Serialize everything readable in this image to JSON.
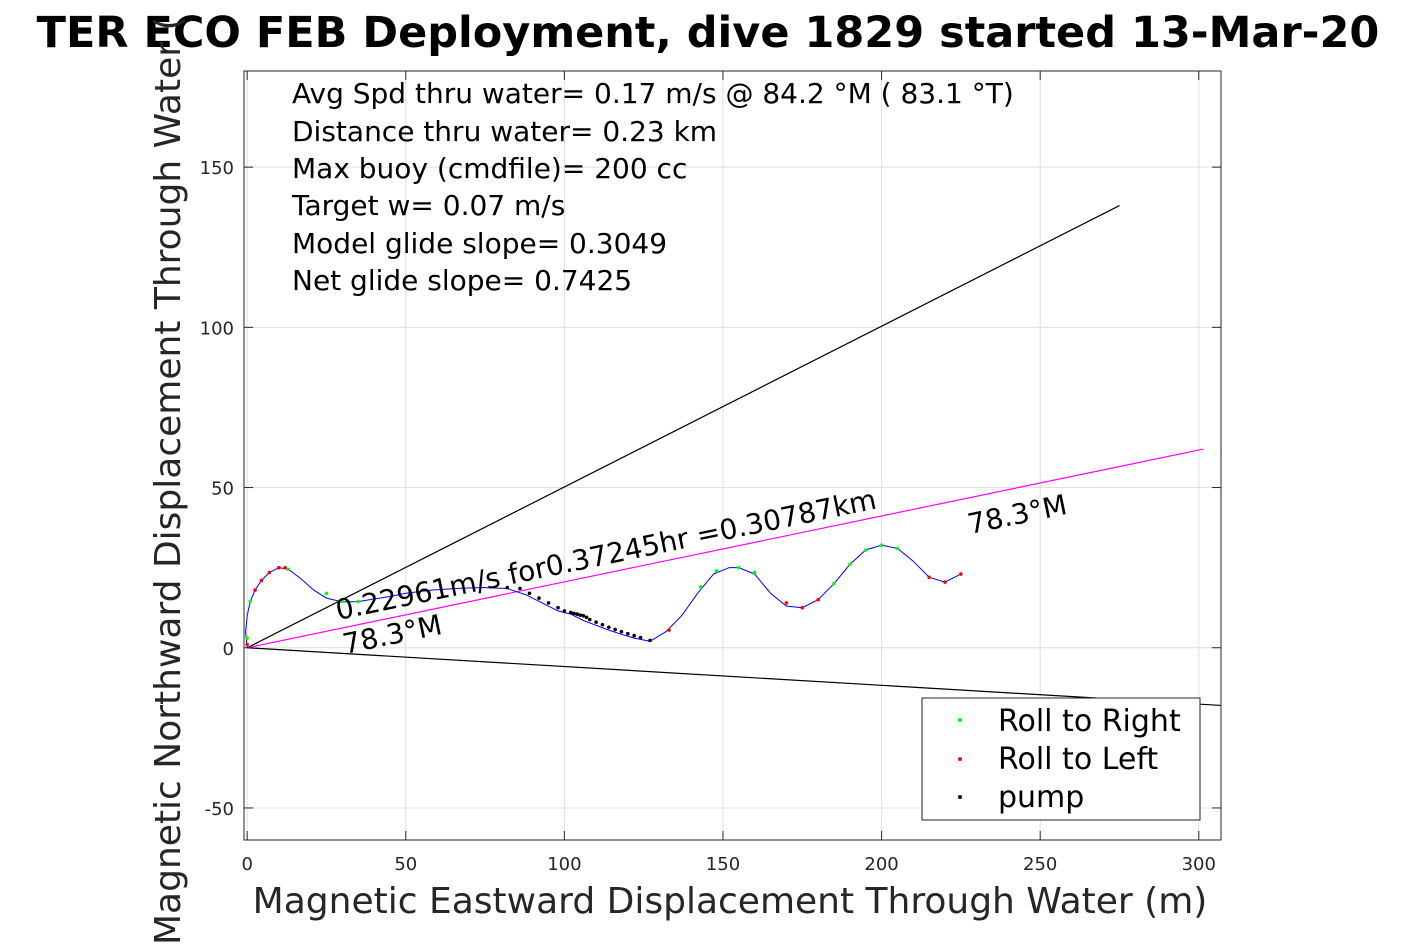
{
  "chart_data": {
    "type": "scatter",
    "title": "TER ECO FEB Deployment, dive 1829 started 13-Mar-20",
    "xlabel": "Magnetic Eastward Displacement Through Water (m)",
    "ylabel": "Magnetic Northward Displacement Through Water (",
    "xlim": [
      -1,
      307
    ],
    "ylim": [
      -60,
      180
    ],
    "xticks": [
      0,
      50,
      100,
      150,
      200,
      250,
      300
    ],
    "yticks": [
      -50,
      0,
      50,
      100,
      150
    ],
    "xtick_labels": [
      "0",
      "50",
      "100",
      "150",
      "200",
      "250",
      "300"
    ],
    "ytick_labels": [
      "-50",
      "0",
      "50",
      "100",
      "150"
    ],
    "grid": true,
    "legend_position": "bottom-right",
    "colors": {
      "track": "#0000ff",
      "roll_right": "#00ff00",
      "roll_left": "#ff0000",
      "pump": "#000080",
      "net_line": "#ff00ff",
      "cone": "#000000"
    },
    "stats": [
      "Avg Spd thru water=  0.17 m/s @  84.2 °M ( 83.1 °T)",
      "Distance thru water=  0.23 km",
      "Max buoy (cmdfile)= 200 cc",
      "Target w= 0.07 m/s",
      "Model glide slope= 0.3049",
      "Net glide slope= 0.7425"
    ],
    "annotations": {
      "net_line": "0.22961m/s for0.37245hr =0.30787km",
      "heading_near": "78.3°M",
      "heading_far": "78.3°M"
    },
    "lines": [
      {
        "name": "cone_upper",
        "x": [
          0,
          275
        ],
        "y": [
          0,
          138
        ]
      },
      {
        "name": "cone_lower",
        "x": [
          0,
          307
        ],
        "y": [
          0,
          -18
        ]
      },
      {
        "name": "net_line",
        "x": [
          0,
          301.5
        ],
        "y": [
          0,
          62
        ]
      }
    ],
    "track": {
      "x": [
        0,
        -0.5,
        0,
        1,
        2.5,
        4.5,
        7,
        10,
        13,
        17,
        21,
        25,
        30,
        35,
        40,
        45,
        50,
        58,
        66,
        74,
        82,
        88,
        93,
        98,
        102,
        106,
        110,
        114,
        118,
        122,
        127,
        132,
        137,
        142,
        147,
        152,
        155,
        160,
        165,
        170,
        175,
        180,
        185,
        190,
        195,
        200,
        205,
        210,
        215,
        220,
        225
      ],
      "y": [
        0,
        5,
        10,
        14.5,
        18,
        21,
        23.5,
        25,
        24.5,
        21.5,
        18,
        15.5,
        14.3,
        14.4,
        15.2,
        16,
        17,
        18,
        18.5,
        18.8,
        18.5,
        16.5,
        14,
        11.5,
        10.5,
        8.5,
        7,
        5.5,
        4.2,
        3,
        2,
        5,
        10,
        17,
        23,
        25,
        25,
        23,
        17,
        13,
        12.5,
        15,
        20,
        26,
        30.5,
        32,
        31,
        27,
        22,
        20.5,
        23
      ]
    },
    "series": [
      {
        "name": "Roll to Right",
        "color": "#00ff00",
        "x": [
          0,
          1,
          13,
          25,
          30,
          35,
          40,
          143,
          148,
          155,
          160,
          185,
          190,
          195,
          200,
          205
        ],
        "y": [
          3,
          14.5,
          24.5,
          17,
          14.5,
          14.4,
          15.2,
          19,
          24,
          25,
          23.5,
          20,
          26,
          30.5,
          32,
          31
        ]
      },
      {
        "name": "Roll to Left",
        "color": "#ff0000",
        "x": [
          0,
          2.5,
          4.5,
          7,
          10,
          12,
          133,
          170,
          175,
          180,
          215,
          220,
          225
        ],
        "y": [
          1,
          18,
          21,
          23.5,
          25,
          25,
          5.5,
          14,
          12.5,
          15,
          22,
          20.5,
          23
        ]
      },
      {
        "name": "pump",
        "color": "#000000",
        "x": [
          82,
          86,
          89,
          92,
          95,
          98,
          100,
          102,
          103,
          104,
          105,
          106,
          107,
          108,
          110,
          112,
          114,
          116,
          118,
          120,
          122,
          124,
          127
        ],
        "y": [
          18.8,
          18.5,
          17,
          15.5,
          14,
          12.5,
          11.5,
          11,
          10.7,
          10.5,
          10.2,
          10,
          9.5,
          8.8,
          8,
          7.2,
          6.4,
          5.7,
          5,
          4.4,
          3.8,
          3.2,
          2.3
        ]
      }
    ]
  }
}
